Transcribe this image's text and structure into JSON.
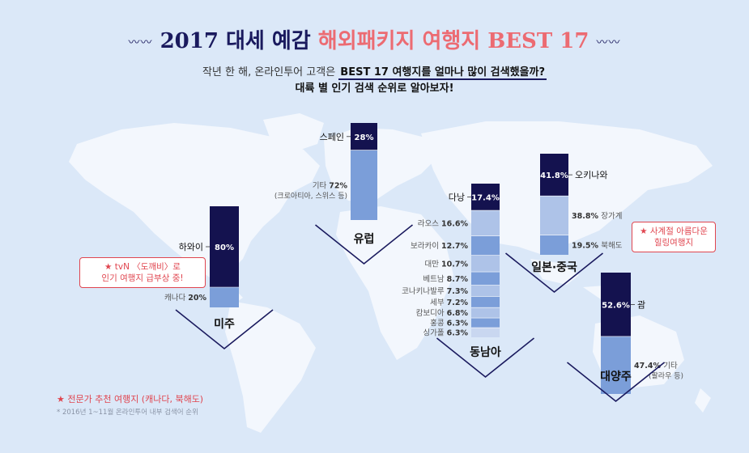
{
  "header": {
    "title_main": "2017 대세 예감",
    "title_accent": "해외패키지 여행지 BEST 17",
    "ornament": "〰〰",
    "subtitle_pre": "작년 한 해, 온라인투어 고객은",
    "subtitle_em": "BEST 17 여행지를 얼마나 많이 검색했을까?",
    "subtitle2": "대륙 별 인기 검색 순위로 알아보자!"
  },
  "notes": {
    "america": "★ tvN 〈도깨비〉로\n인기 여행지 급부상 중!",
    "japan": "★ 사계절 아름다운\n힐링여행지"
  },
  "footer": {
    "note": "★ 전문가 추천 여행지 (캐나다, 북해도)",
    "source": "* 2016년 1~11월 온라인투어 내부 검색어 순위"
  },
  "colors": {
    "dark": "#14124f",
    "mid": "#7b9ed9",
    "light": "#aec3e8",
    "pale": "#c9d7f0",
    "highlight_text": "#e0454f"
  },
  "chart_data": [
    {
      "type": "bar",
      "region": "미주",
      "segments": [
        {
          "name": "하와이",
          "value": 80,
          "label": "80%",
          "color": "dark"
        },
        {
          "name": "캐나다",
          "value": 20,
          "label": "20%",
          "color": "mid"
        }
      ]
    },
    {
      "type": "bar",
      "region": "유럽",
      "segments": [
        {
          "name": "스페인",
          "value": 28,
          "label": "28%",
          "color": "dark"
        },
        {
          "name": "기타",
          "value": 72,
          "label": "72%",
          "note": "(크로아티아, 스위스 등)",
          "color": "mid"
        }
      ]
    },
    {
      "type": "bar",
      "region": "동남아",
      "segments": [
        {
          "name": "다낭",
          "value": 17.4,
          "label": "17.4%",
          "color": "dark"
        },
        {
          "name": "라오스",
          "value": 16.6,
          "label": "16.6%",
          "color": "light"
        },
        {
          "name": "보라카이",
          "value": 12.7,
          "label": "12.7%",
          "color": "mid"
        },
        {
          "name": "대만",
          "value": 10.7,
          "label": "10.7%",
          "color": "light"
        },
        {
          "name": "베트남",
          "value": 8.7,
          "label": "8.7%",
          "color": "mid"
        },
        {
          "name": "코나키나발루",
          "value": 7.3,
          "label": "7.3%",
          "color": "light"
        },
        {
          "name": "세부",
          "value": 7.2,
          "label": "7.2%",
          "color": "mid"
        },
        {
          "name": "캄보디아",
          "value": 6.8,
          "label": "6.8%",
          "color": "light"
        },
        {
          "name": "홍콩",
          "value": 6.3,
          "label": "6.3%",
          "color": "mid"
        },
        {
          "name": "싱가폴",
          "value": 6.3,
          "label": "6.3%",
          "color": "pale"
        }
      ]
    },
    {
      "type": "bar",
      "region": "일본·중국",
      "segments": [
        {
          "name": "오키나와",
          "value": 41.8,
          "label": "41.8%",
          "color": "dark"
        },
        {
          "name": "장가계",
          "value": 38.8,
          "label": "38.8%",
          "color": "light"
        },
        {
          "name": "북해도",
          "value": 19.5,
          "label": "19.5%",
          "color": "mid"
        }
      ]
    },
    {
      "type": "bar",
      "region": "대양주",
      "segments": [
        {
          "name": "괌",
          "value": 52.6,
          "label": "52.6%",
          "color": "dark"
        },
        {
          "name": "기타",
          "value": 47.4,
          "label": "47.4%",
          "note": "(팔라우 등)",
          "color": "mid"
        }
      ]
    }
  ]
}
